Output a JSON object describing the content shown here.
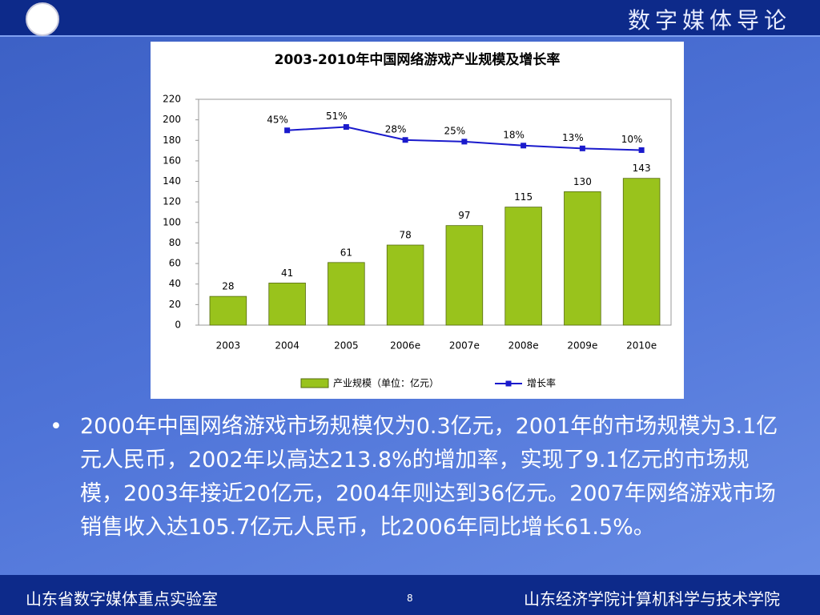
{
  "header": {
    "title": "数字媒体导论"
  },
  "chart_data": {
    "type": "bar",
    "title": "2003-2010年中国网络游戏产业规模及增长率",
    "categories": [
      "2003",
      "2004",
      "2005",
      "2006e",
      "2007e",
      "2008e",
      "2009e",
      "2010e"
    ],
    "series": [
      {
        "name": "产业规模（单位：亿元）",
        "type": "bar",
        "color": "#99c31c",
        "values": [
          28,
          41,
          61,
          78,
          97,
          115,
          130,
          143
        ]
      },
      {
        "name": "增长率",
        "type": "line",
        "axis": "y2",
        "color": "#1a1acc",
        "values": [
          null,
          45,
          51,
          28,
          25,
          18,
          13,
          10
        ],
        "value_labels": [
          null,
          "45%",
          "51%",
          "28%",
          "25%",
          "18%",
          "13%",
          "10%"
        ]
      }
    ],
    "ylim": [
      0,
      220
    ],
    "yticks": [
      0,
      20,
      40,
      60,
      80,
      100,
      120,
      140,
      160,
      180,
      200,
      220
    ],
    "y2lim": [
      -300,
      100
    ]
  },
  "bullet": "2000年中国网络游戏市场规模仅为0.3亿元，2001年的市场规模为3.1亿元人民币，2002年以高达213.8%的增加率，实现了9.1亿元的市场规模，2003年接近20亿元，2004年则达到36亿元。2007年网络游戏市场销售收入达105.7亿元人民币，比2006年同比增长61.5%。",
  "footer": {
    "left": "山东省数字媒体重点实验室",
    "page": "8",
    "right": "山东经济学院计算机科学与技术学院"
  }
}
